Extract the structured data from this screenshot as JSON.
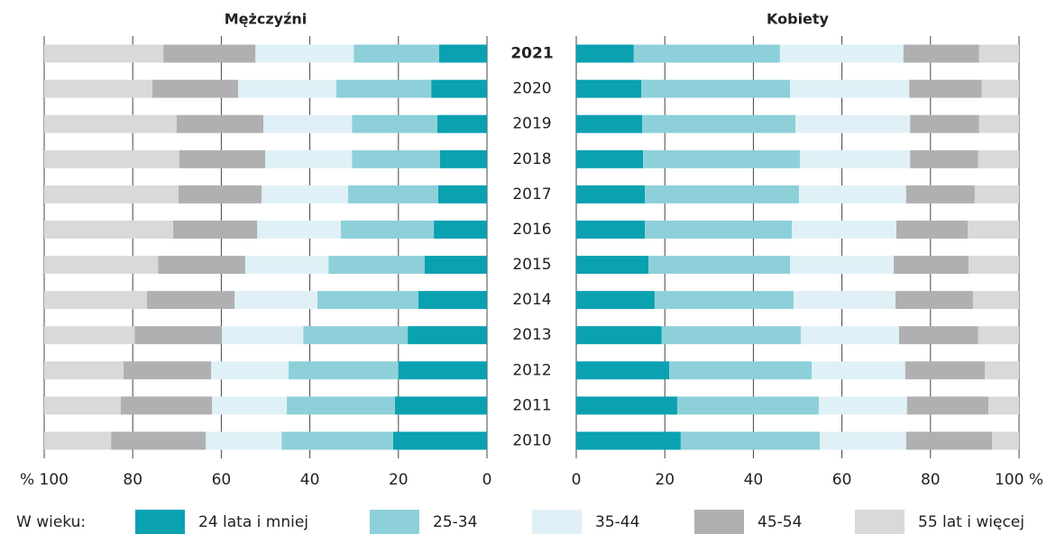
{
  "chart_data": {
    "type": "bar",
    "orientation": "horizontal",
    "stacked": true,
    "categories": [
      "2021",
      "2020",
      "2019",
      "2018",
      "2017",
      "2016",
      "2015",
      "2014",
      "2013",
      "2012",
      "2011",
      "2010"
    ],
    "legend_title": "W wieku:",
    "series": [
      {
        "name": "24 lata i mniej",
        "color": "#0aa1b1"
      },
      {
        "name": "25-34",
        "color": "#8dd0d9"
      },
      {
        "name": "35-44",
        "color": "#dff1f6"
      },
      {
        "name": "45-54",
        "color": "#b0b0b2"
      },
      {
        "name": "55 lat i więcej",
        "color": "#d9d9d9"
      }
    ],
    "grid": true,
    "panels": [
      {
        "title": "Mężczyźni",
        "xlim": [
          100,
          0
        ],
        "xticks": [
          {
            "value": 100,
            "label": "% 100"
          },
          80,
          60,
          40,
          20,
          0
        ],
        "values": [
          [
            10.8,
            12.6,
            11.2,
            10.6,
            11.0,
            12.0,
            14.1,
            15.5,
            17.9,
            20.0,
            20.8,
            21.2
          ],
          [
            19.3,
            21.4,
            19.3,
            19.9,
            20.4,
            21.0,
            21.7,
            22.8,
            23.6,
            24.8,
            24.4,
            25.2
          ],
          [
            22.2,
            22.2,
            20.0,
            19.6,
            19.5,
            18.9,
            18.8,
            18.7,
            18.4,
            17.5,
            16.9,
            17.1
          ],
          [
            20.8,
            19.4,
            19.6,
            19.4,
            18.8,
            19.0,
            19.7,
            19.8,
            19.7,
            19.8,
            20.6,
            21.4
          ],
          [
            26.9,
            24.4,
            29.9,
            30.5,
            30.3,
            29.1,
            25.7,
            23.2,
            20.4,
            17.9,
            17.3,
            15.1
          ]
        ]
      },
      {
        "title": "Kobiety",
        "xlim": [
          0,
          100
        ],
        "xticks": [
          0,
          20,
          40,
          60,
          80,
          {
            "value": 100,
            "label": "100 %"
          }
        ],
        "values": [
          [
            13.0,
            14.7,
            14.9,
            15.1,
            15.5,
            15.5,
            16.3,
            17.7,
            19.3,
            21.0,
            22.8,
            23.6
          ],
          [
            33.0,
            33.6,
            34.6,
            35.4,
            34.8,
            33.2,
            32.0,
            31.4,
            31.4,
            32.2,
            32.0,
            31.4
          ],
          [
            27.9,
            26.9,
            25.9,
            24.9,
            24.2,
            23.6,
            23.4,
            23.0,
            22.2,
            21.1,
            19.9,
            19.5
          ],
          [
            17.1,
            16.4,
            15.6,
            15.4,
            15.5,
            16.1,
            16.9,
            17.5,
            17.9,
            18.0,
            18.4,
            19.4
          ],
          [
            9.0,
            8.4,
            9.0,
            9.2,
            10.0,
            11.6,
            11.4,
            10.4,
            9.2,
            7.7,
            6.9,
            6.1
          ]
        ]
      }
    ]
  }
}
